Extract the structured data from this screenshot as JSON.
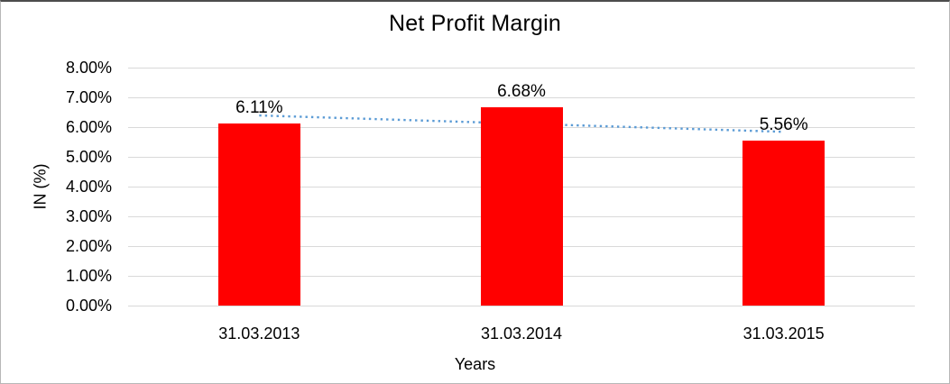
{
  "window": {
    "background": "#ffffff",
    "border_color": "#b7b7b7"
  },
  "chart_data": {
    "type": "bar",
    "title": "Net Profit Margin",
    "xlabel": "Years",
    "ylabel": "IN (%)",
    "categories": [
      "31.03.2013",
      "31.03.2014",
      "31.03.2015"
    ],
    "series": [
      {
        "name": "Net Profit Margin",
        "color": "#ff0000",
        "values": [
          6.11,
          6.68,
          5.56
        ]
      }
    ],
    "data_labels": [
      "6.11%",
      "6.68%",
      "5.56%"
    ],
    "ylim": [
      0,
      8
    ],
    "ytick_step": 1,
    "ytick_labels": [
      "0.00%",
      "1.00%",
      "2.00%",
      "3.00%",
      "4.00%",
      "5.00%",
      "6.00%",
      "7.00%",
      "8.00%"
    ],
    "grid": true,
    "gridline_color": "#d9d9d9",
    "legend": "none",
    "trendline": {
      "type": "linear",
      "style": "dotted",
      "color": "#5b9bd5"
    }
  }
}
